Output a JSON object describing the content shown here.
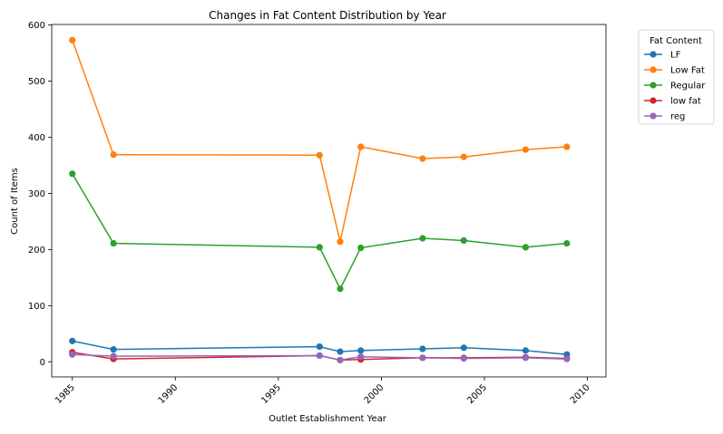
{
  "chart_data": {
    "type": "line",
    "title": "Changes in Fat Content Distribution by Year",
    "xlabel": "Outlet Establishment Year",
    "ylabel": "Count of Items",
    "xlim": [
      1984.0,
      2010.9
    ],
    "ylim": [
      -27,
      601
    ],
    "x_ticks": [
      1985,
      1990,
      1995,
      2000,
      2005,
      2010
    ],
    "x_tick_rotation": 45,
    "y_ticks": [
      0,
      100,
      200,
      300,
      400,
      500,
      600
    ],
    "grid": false,
    "legend": {
      "title": "Fat Content",
      "placement": "outside-top-right"
    },
    "x": [
      1985,
      1987,
      1997,
      1998,
      1999,
      2002,
      2004,
      2007,
      2009
    ],
    "series": [
      {
        "name": "LF",
        "color": "#1f77b4",
        "values": [
          37,
          22,
          27,
          18,
          20,
          23,
          25,
          20,
          13
        ]
      },
      {
        "name": "Low Fat",
        "color": "#ff7f0e",
        "values": [
          573,
          369,
          368,
          214,
          383,
          362,
          365,
          378,
          383
        ]
      },
      {
        "name": "Regular",
        "color": "#2ca02c",
        "values": [
          335,
          211,
          204,
          130,
          203,
          220,
          216,
          204,
          211
        ]
      },
      {
        "name": "low fat",
        "color": "#d62728",
        "values": [
          17,
          5,
          11,
          3,
          4,
          7,
          7,
          8,
          6
        ]
      },
      {
        "name": "reg",
        "color": "#9467bd",
        "values": [
          13,
          10,
          11,
          3,
          9,
          7,
          6,
          7,
          5
        ]
      }
    ]
  }
}
